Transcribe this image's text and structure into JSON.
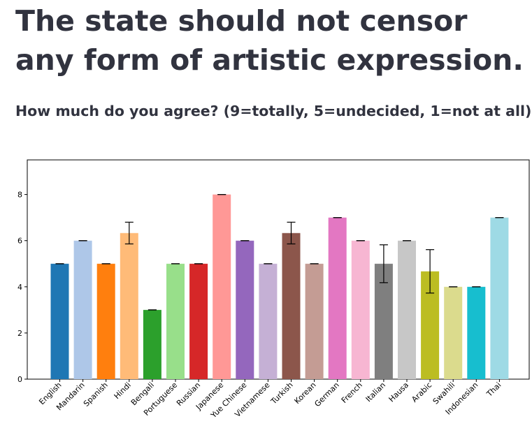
{
  "question": {
    "title": "The state should not censor any form of artistic expression.",
    "subtitle": "How much do you agree? (9=totally, 5=undecided, 1=not at all)"
  },
  "chart_data": {
    "type": "bar",
    "categories": [
      "English",
      "Mandarin",
      "Spanish",
      "Hindi",
      "Bengali",
      "Portuguese",
      "Russian",
      "Japanese",
      "Yue Chinese",
      "Vietnamese",
      "Turkish",
      "Korean",
      "German",
      "French",
      "Italian",
      "Hausa",
      "Arabic",
      "Swahili",
      "Indonesian",
      "Thai"
    ],
    "values": [
      5,
      6,
      5,
      6.33,
      3,
      5,
      5,
      8,
      6,
      5,
      6.33,
      5,
      7,
      6,
      5,
      6,
      4.67,
      4,
      4,
      7
    ],
    "error": [
      0,
      0,
      0,
      0.47,
      0,
      0,
      0,
      0,
      0,
      0,
      0.47,
      0,
      0,
      0,
      0.82,
      0,
      0.94,
      0,
      0,
      0
    ],
    "colors": [
      "#1f77b4",
      "#aec7e8",
      "#ff7f0e",
      "#ffbb78",
      "#2ca02c",
      "#98df8a",
      "#d62728",
      "#ff9896",
      "#9467bd",
      "#c5b0d5",
      "#8c564b",
      "#c49c94",
      "#e377c2",
      "#f7b6d2",
      "#7f7f7f",
      "#c7c7c7",
      "#bcbd22",
      "#dbdb8d",
      "#17becf",
      "#9edae5"
    ],
    "yticks": [
      "0",
      "2",
      "4",
      "6",
      "8"
    ],
    "ylim": [
      0,
      9.5
    ],
    "xlabel": "",
    "ylabel": "",
    "grid": false
  }
}
